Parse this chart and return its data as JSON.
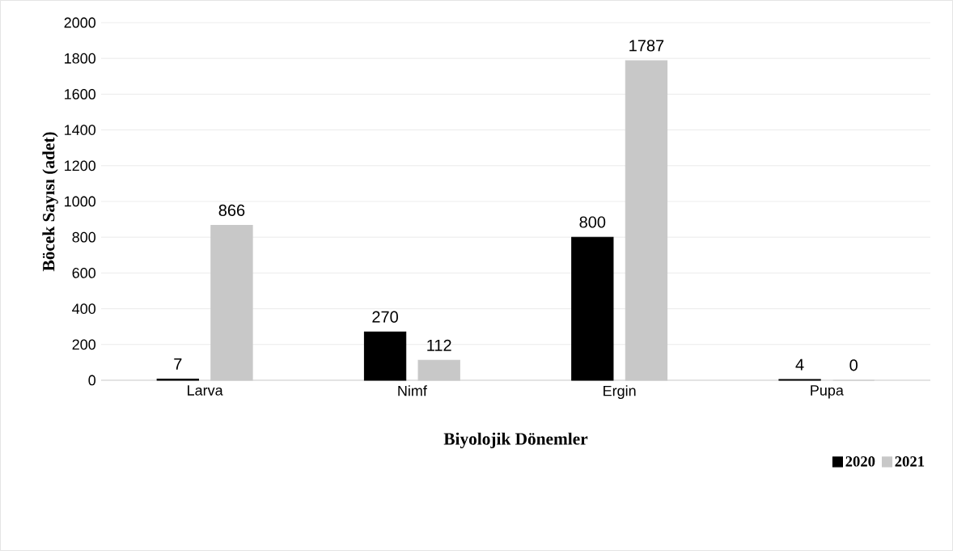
{
  "chart_data": {
    "type": "bar",
    "xlabel": "Biyolojik Dönemler",
    "ylabel": "Böcek Sayısı (adet)",
    "categories": [
      "Larva",
      "Nimf",
      "Ergin",
      "Pupa"
    ],
    "series": [
      {
        "name": "2020",
        "color": "#000000",
        "values": [
          7,
          270,
          800,
          4
        ]
      },
      {
        "name": "2021",
        "color": "#c8c8c8",
        "values": [
          866,
          112,
          1787,
          0
        ]
      }
    ],
    "ylim": [
      0,
      2000
    ],
    "yticks": [
      0,
      200,
      400,
      600,
      800,
      1000,
      1200,
      1400,
      1600,
      1800,
      2000
    ],
    "grid": "y",
    "data_labels": true,
    "legend": "bottom right"
  }
}
